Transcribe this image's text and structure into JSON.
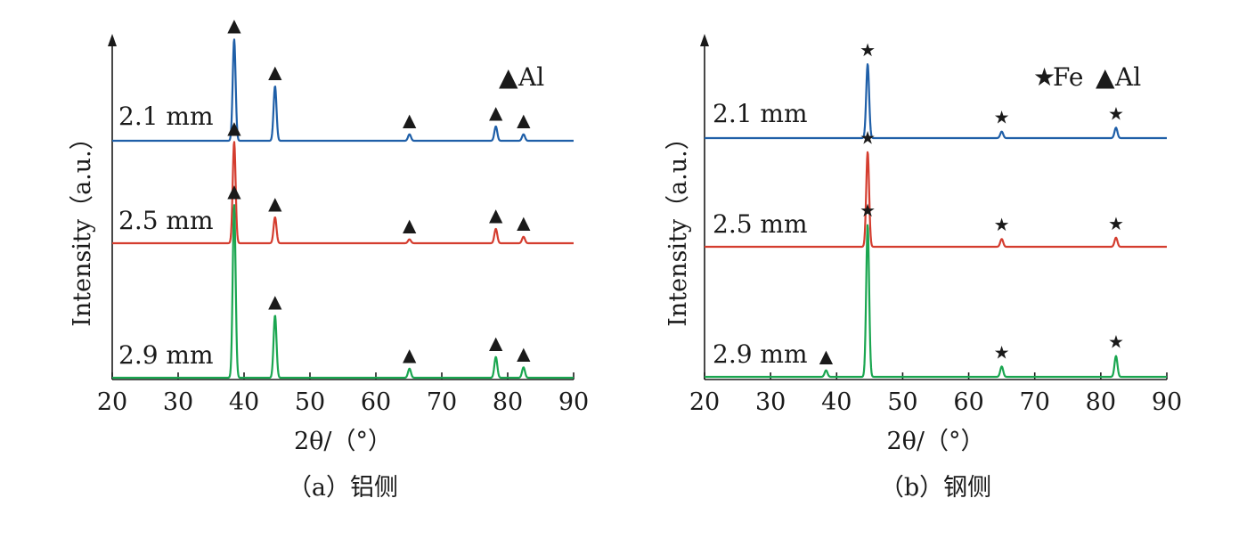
{
  "chart_data": [
    {
      "type": "line",
      "caption": "（a）铝侧",
      "xlabel": "2θ/（°）",
      "ylabel": "Intensity（a.u.）",
      "xlim": [
        20,
        90
      ],
      "xticks": [
        20,
        30,
        40,
        50,
        60,
        70,
        80,
        90
      ],
      "legend": [
        {
          "symbol": "▲",
          "label": "Al"
        }
      ],
      "legend_position": "top-right",
      "series": [
        {
          "name": "2.1 mm",
          "color": "#1f5fa8",
          "peaks": [
            {
              "x": 38.5,
              "height": 0.78,
              "phase": "▲"
            },
            {
              "x": 44.7,
              "height": 0.42,
              "phase": "▲"
            },
            {
              "x": 65.1,
              "height": 0.05,
              "phase": "▲"
            },
            {
              "x": 78.2,
              "height": 0.11,
              "phase": "▲"
            },
            {
              "x": 82.4,
              "height": 0.05,
              "phase": "▲"
            }
          ]
        },
        {
          "name": "2.5 mm",
          "color": "#d43d2f",
          "peaks": [
            {
              "x": 38.5,
              "height": 0.78,
              "phase": "▲"
            },
            {
              "x": 44.7,
              "height": 0.2,
              "phase": "▲"
            },
            {
              "x": 65.1,
              "height": 0.03,
              "phase": "▲"
            },
            {
              "x": 78.2,
              "height": 0.11,
              "phase": "▲"
            },
            {
              "x": 82.4,
              "height": 0.05,
              "phase": "▲"
            }
          ]
        },
        {
          "name": "2.9 mm",
          "color": "#1aa650",
          "peaks": [
            {
              "x": 38.5,
              "height": 1.33,
              "phase": "▲"
            },
            {
              "x": 44.7,
              "height": 0.48,
              "phase": "▲"
            },
            {
              "x": 65.1,
              "height": 0.07,
              "phase": "▲"
            },
            {
              "x": 78.2,
              "height": 0.16,
              "phase": "▲"
            },
            {
              "x": 82.4,
              "height": 0.08,
              "phase": "▲"
            }
          ]
        }
      ]
    },
    {
      "type": "line",
      "caption": "（b）钢侧",
      "xlabel": "2θ/（°）",
      "ylabel": "Intensity（a.u.）",
      "xlim": [
        20,
        90
      ],
      "xticks": [
        20,
        30,
        40,
        50,
        60,
        70,
        80,
        90
      ],
      "legend": [
        {
          "symbol": "★",
          "label": "Fe"
        },
        {
          "symbol": "▲",
          "label": "Al"
        }
      ],
      "legend_position": "top-right",
      "series": [
        {
          "name": "2.1 mm",
          "color": "#1f5fa8",
          "peaks": [
            {
              "x": 44.7,
              "height": 0.57,
              "phase": "★"
            },
            {
              "x": 65.0,
              "height": 0.05,
              "phase": "★"
            },
            {
              "x": 82.3,
              "height": 0.08,
              "phase": "★"
            }
          ]
        },
        {
          "name": "2.5 mm",
          "color": "#d43d2f",
          "peaks": [
            {
              "x": 44.7,
              "height": 0.73,
              "phase": "★"
            },
            {
              "x": 65.0,
              "height": 0.06,
              "phase": "★"
            },
            {
              "x": 82.3,
              "height": 0.07,
              "phase": "★"
            }
          ]
        },
        {
          "name": "2.9 mm",
          "color": "#1aa650",
          "peaks": [
            {
              "x": 38.4,
              "height": 0.05,
              "phase": "▲"
            },
            {
              "x": 44.7,
              "height": 1.17,
              "phase": "★"
            },
            {
              "x": 65.0,
              "height": 0.08,
              "phase": "★"
            },
            {
              "x": 82.3,
              "height": 0.16,
              "phase": "★"
            }
          ]
        }
      ]
    }
  ]
}
